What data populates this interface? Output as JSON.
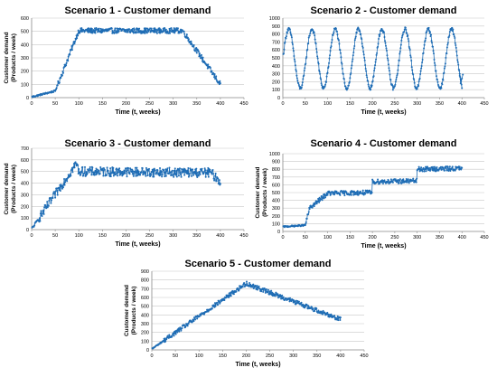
{
  "chart_data": [
    {
      "type": "scatter",
      "title": "Scenario 1 - Customer demand",
      "xlabel": "Time (t, weeks)",
      "ylabel_line1": "Customer demand",
      "ylabel_line2": "(Products / week)",
      "xlim": [
        0,
        450
      ],
      "ylim": [
        0,
        600
      ],
      "xticks": [
        0,
        50,
        100,
        150,
        200,
        250,
        300,
        350,
        400,
        450
      ],
      "yticks": [
        0,
        100,
        200,
        300,
        400,
        500,
        600
      ],
      "grid": "horizontal",
      "pattern": {
        "kind": "piecewise",
        "points": [
          [
            0,
            5
          ],
          [
            50,
            50
          ],
          [
            100,
            505
          ],
          [
            320,
            505
          ],
          [
            400,
            100
          ]
        ],
        "noise": 20
      }
    },
    {
      "type": "scatter",
      "title": "Scenario 2 - Customer demand",
      "xlabel": "Time (t, weeks)",
      "ylabel_line1": "",
      "ylabel_line2": "",
      "xlim": [
        0,
        450
      ],
      "ylim": [
        0,
        1000
      ],
      "xticks": [
        0,
        50,
        100,
        150,
        200,
        250,
        300,
        350,
        400,
        450
      ],
      "yticks": [
        0,
        100,
        200,
        300,
        400,
        500,
        600,
        700,
        800,
        900,
        1000
      ],
      "grid": "horizontal",
      "pattern": {
        "kind": "sine",
        "mean": 490,
        "amplitude": 370,
        "period": 52,
        "phase_peak_x": 13,
        "noise": 25,
        "tail": [
          [
            395,
            300
          ],
          [
            397,
            180
          ],
          [
            400,
            240
          ],
          [
            402,
            290
          ]
        ]
      }
    },
    {
      "type": "scatter",
      "title": "Scenario 3 - Customer demand",
      "xlabel": "Time (t, weeks)",
      "ylabel_line1": "Customer demand",
      "ylabel_line2": "(Products / week)",
      "xlim": [
        0,
        450
      ],
      "ylim": [
        0,
        700
      ],
      "xticks": [
        0,
        50,
        100,
        150,
        200,
        250,
        300,
        350,
        400,
        450
      ],
      "yticks": [
        0,
        100,
        200,
        300,
        400,
        500,
        600,
        700
      ],
      "grid": "horizontal",
      "pattern": {
        "kind": "piecewise",
        "points": [
          [
            0,
            5
          ],
          [
            95,
            570
          ],
          [
            100,
            500
          ],
          [
            380,
            490
          ],
          [
            400,
            410
          ]
        ],
        "noise": 40
      }
    },
    {
      "type": "scatter",
      "title": "Scenario 4 - Customer demand",
      "xlabel": "Time (t, weeks)",
      "ylabel_line1": "Customer demand",
      "ylabel_line2": "(Products / week)",
      "xlim": [
        0,
        450
      ],
      "ylim": [
        0,
        1000
      ],
      "xticks": [
        0,
        50,
        100,
        150,
        200,
        250,
        300,
        350,
        400,
        450
      ],
      "yticks": [
        0,
        100,
        200,
        300,
        400,
        500,
        600,
        700,
        800,
        900,
        1000
      ],
      "grid": "horizontal",
      "pattern": {
        "kind": "piecewise",
        "points": [
          [
            0,
            60
          ],
          [
            50,
            80
          ],
          [
            60,
            300
          ],
          [
            100,
            490
          ],
          [
            199,
            500
          ],
          [
            200,
            640
          ],
          [
            299,
            650
          ],
          [
            300,
            800
          ],
          [
            400,
            810
          ]
        ],
        "noise": 30
      }
    },
    {
      "type": "scatter",
      "title": "Scenario 5 - Customer demand",
      "xlabel": "Time (t, weeks)",
      "ylabel_line1": "Customer demand",
      "ylabel_line2": "(Products / week)",
      "xlim": [
        0,
        450
      ],
      "ylim": [
        0,
        900
      ],
      "xticks": [
        0,
        50,
        100,
        150,
        200,
        250,
        300,
        350,
        400,
        450
      ],
      "yticks": [
        0,
        100,
        200,
        300,
        400,
        500,
        600,
        700,
        800,
        900
      ],
      "grid": "horizontal",
      "pattern": {
        "kind": "piecewise",
        "points": [
          [
            0,
            10
          ],
          [
            200,
            760
          ],
          [
            400,
            350
          ]
        ],
        "noise": 25
      }
    }
  ],
  "colors": {
    "series": "#1f6db5",
    "grid": "#c8c8c8",
    "axis": "#888888",
    "text": "#000000"
  }
}
